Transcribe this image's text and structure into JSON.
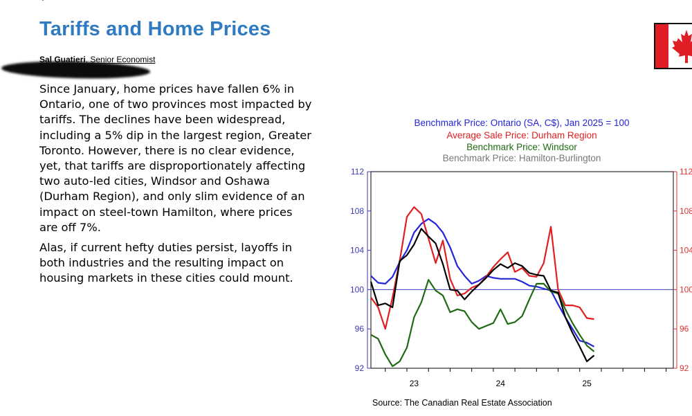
{
  "article": {
    "title": "Tariffs and Home Prices",
    "author_name": "Sal Guatieri",
    "author_role": ", Senior Economist",
    "paragraphs": [
      "Since January, home prices have fallen 6% in Ontario, one of two provinces most impacted by tariffs. The declines have been widespread, including a 5% dip in the largest region, Greater Toronto. However, there is no clear evidence, yet, that tariffs are disproportionately affecting two auto-led cities, Windsor and Oshawa (Durham Region), and only slim evidence of an impact on steel-town Hamilton, where prices are off 7%.",
      "Alas, if current hefty duties persist, layoffs in both industries and the resulting impact on housing markets in these cities could mount."
    ],
    "flag_icon": "canada-flag-icon"
  },
  "chart_data": {
    "type": "line",
    "title_lines": [
      {
        "text": "Benchmark Price: Ontario (SA, C$), Jan 2025 = 100",
        "color": "#2424d8"
      },
      {
        "text": "Average Sale Price: Durham Region",
        "color": "#e02020"
      },
      {
        "text": "Benchmark Price: Windsor",
        "color": "#1e6a12"
      },
      {
        "text": "Benchmark Price: Hamilton-Burlington",
        "color": "#777777"
      }
    ],
    "x_tick_labels": [
      "23",
      "24",
      "25"
    ],
    "x_tick_months": [
      12,
      24,
      36
    ],
    "x_month_range": [
      0,
      42
    ],
    "ylim": [
      92,
      112
    ],
    "y_ticks": [
      92,
      96,
      100,
      104,
      108,
      112
    ],
    "reference_line": 100,
    "axis_colors": {
      "left": "#3a3ab8",
      "right": "#e03030"
    },
    "source": "Source:  The Canadian Real Estate Association",
    "series": [
      {
        "key": "ontario",
        "color": "#2424d8",
        "values": [
          [
            0,
            101.4
          ],
          [
            1,
            100.7
          ],
          [
            2,
            100.6
          ],
          [
            3,
            101.3
          ],
          [
            4,
            102.8
          ],
          [
            5,
            104.0
          ],
          [
            6,
            105.8
          ],
          [
            7,
            106.7
          ],
          [
            8,
            107.2
          ],
          [
            9,
            106.7
          ],
          [
            10,
            105.8
          ],
          [
            11,
            104.3
          ],
          [
            12,
            102.4
          ],
          [
            13,
            101.4
          ],
          [
            14,
            100.6
          ],
          [
            15,
            100.9
          ],
          [
            16,
            101.4
          ],
          [
            17,
            101.2
          ],
          [
            18,
            101.1
          ],
          [
            19,
            101.1
          ],
          [
            20,
            101.1
          ],
          [
            21,
            100.8
          ],
          [
            22,
            100.4
          ],
          [
            23,
            100.3
          ],
          [
            24,
            100.1
          ],
          [
            25,
            99.9
          ],
          [
            26,
            98.5
          ],
          [
            27,
            97.2
          ],
          [
            28,
            96.0
          ],
          [
            29,
            94.8
          ],
          [
            30,
            94.6
          ],
          [
            31,
            94.2
          ]
        ]
      },
      {
        "key": "durham",
        "color": "#e02020",
        "values": [
          [
            0,
            99.2
          ],
          [
            1,
            98.2
          ],
          [
            2,
            96.0
          ],
          [
            3,
            99.2
          ],
          [
            4,
            102.9
          ],
          [
            5,
            107.4
          ],
          [
            6,
            108.4
          ],
          [
            7,
            107.7
          ],
          [
            8,
            105.2
          ],
          [
            9,
            102.7
          ],
          [
            10,
            105.0
          ],
          [
            11,
            101.1
          ],
          [
            12,
            99.4
          ],
          [
            13,
            99.6
          ],
          [
            14,
            100.2
          ],
          [
            15,
            100.5
          ],
          [
            16,
            101.3
          ],
          [
            17,
            102.3
          ],
          [
            18,
            103.1
          ],
          [
            19,
            103.8
          ],
          [
            20,
            101.8
          ],
          [
            21,
            102.2
          ],
          [
            22,
            101.4
          ],
          [
            23,
            101.3
          ],
          [
            24,
            102.7
          ],
          [
            25,
            106.4
          ],
          [
            26,
            100.0
          ],
          [
            27,
            98.4
          ],
          [
            28,
            98.4
          ],
          [
            29,
            98.2
          ],
          [
            30,
            97.1
          ],
          [
            31,
            97.0
          ]
        ]
      },
      {
        "key": "windsor",
        "color": "#1e6a12",
        "values": [
          [
            0,
            95.4
          ],
          [
            1,
            95.0
          ],
          [
            2,
            93.4
          ],
          [
            3,
            92.2
          ],
          [
            4,
            92.7
          ],
          [
            5,
            94.1
          ],
          [
            6,
            97.2
          ],
          [
            7,
            98.7
          ],
          [
            8,
            101.0
          ],
          [
            9,
            99.9
          ],
          [
            10,
            99.4
          ],
          [
            11,
            97.7
          ],
          [
            12,
            98.0
          ],
          [
            13,
            97.8
          ],
          [
            14,
            96.7
          ],
          [
            15,
            96.0
          ],
          [
            16,
            96.3
          ],
          [
            17,
            96.6
          ],
          [
            18,
            98.0
          ],
          [
            19,
            96.5
          ],
          [
            20,
            96.7
          ],
          [
            21,
            97.3
          ],
          [
            22,
            99.0
          ],
          [
            23,
            100.6
          ],
          [
            24,
            100.6
          ],
          [
            25,
            99.8
          ],
          [
            26,
            99.6
          ],
          [
            27,
            98.0
          ],
          [
            28,
            96.6
          ],
          [
            29,
            95.4
          ],
          [
            30,
            94.3
          ],
          [
            31,
            93.7
          ]
        ]
      },
      {
        "key": "hamilton",
        "color": "#000000",
        "values": [
          [
            0,
            100.8
          ],
          [
            1,
            98.4
          ],
          [
            2,
            98.6
          ],
          [
            3,
            98.2
          ],
          [
            4,
            102.9
          ],
          [
            5,
            103.5
          ],
          [
            6,
            104.6
          ],
          [
            7,
            106.2
          ],
          [
            8,
            105.4
          ],
          [
            9,
            104.7
          ],
          [
            10,
            102.6
          ],
          [
            11,
            100.0
          ],
          [
            12,
            99.9
          ],
          [
            13,
            99.0
          ],
          [
            14,
            99.8
          ],
          [
            15,
            100.5
          ],
          [
            16,
            101.2
          ],
          [
            17,
            102.0
          ],
          [
            18,
            102.6
          ],
          [
            19,
            102.2
          ],
          [
            20,
            102.7
          ],
          [
            21,
            102.4
          ],
          [
            22,
            101.7
          ],
          [
            23,
            101.5
          ],
          [
            24,
            101.4
          ],
          [
            25,
            99.9
          ],
          [
            26,
            99.7
          ],
          [
            27,
            97.2
          ],
          [
            28,
            95.6
          ],
          [
            29,
            94.2
          ],
          [
            30,
            92.7
          ],
          [
            31,
            93.3
          ]
        ]
      }
    ]
  }
}
